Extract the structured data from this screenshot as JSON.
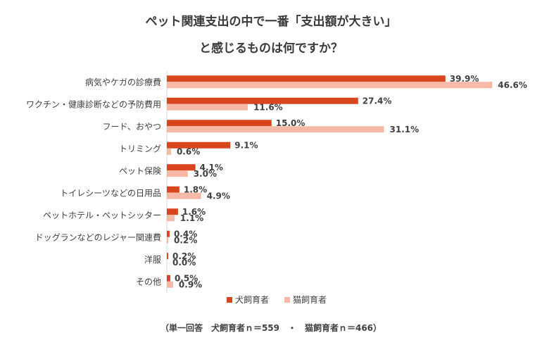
{
  "chart_data": {
    "type": "bar",
    "orientation": "horizontal",
    "title_line1": "ペット関連支出の中で一番「支出額が大きい」",
    "title_line2": "と感じるものは何ですか？",
    "categories": [
      "病気やケガの診療費",
      "ワクチン・健康診断などの予防費用",
      "フード、おやつ",
      "トリミング",
      "ペット保険",
      "トイレシーツなどの日用品",
      "ペットホテル・ペットシッター",
      "ドッグランなどのレジャー関連費",
      "洋服",
      "その他"
    ],
    "series": [
      {
        "name": "犬飼育者",
        "color": "#d9461e",
        "values": [
          39.9,
          27.4,
          15.0,
          9.1,
          4.1,
          1.8,
          1.6,
          0.4,
          0.2,
          0.5
        ],
        "labels": [
          "39.9%",
          "27.4%",
          "15.0%",
          "9.1%",
          "4.1%",
          "1.8%",
          "1.6%",
          "0.4%",
          "0.2%",
          "0.5%"
        ]
      },
      {
        "name": "猫飼育者",
        "color": "#f6b9a7",
        "values": [
          46.6,
          11.6,
          31.1,
          0.6,
          3.0,
          4.9,
          1.1,
          0.2,
          0.0,
          0.9
        ],
        "labels": [
          "46.6%",
          "11.6%",
          "31.1%",
          "0.6%",
          "3.0%",
          "4.9%",
          "1.1%",
          "0.2%",
          "0.0%",
          "0.9%"
        ]
      }
    ],
    "xlim": [
      0,
      50
    ],
    "unit": "%",
    "grid": false,
    "legend_position": "bottom",
    "note": "（単一回答　犬飼育者ｎ＝559　・　猫飼育者ｎ＝466）"
  }
}
